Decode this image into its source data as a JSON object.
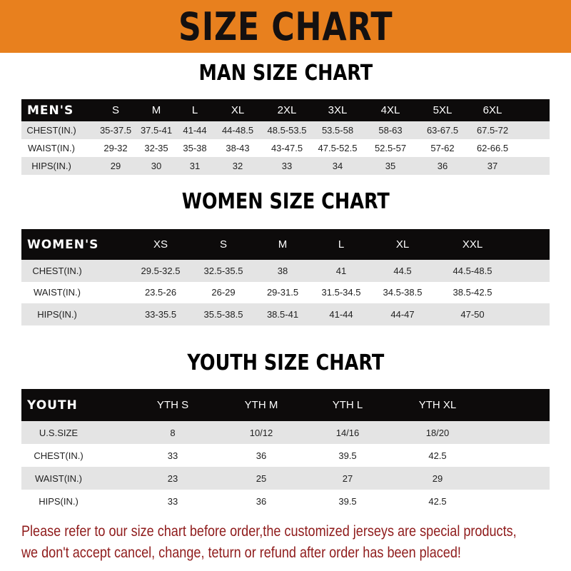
{
  "banner": {
    "title": "SIZE CHART",
    "color": "#e8801e"
  },
  "men": {
    "title": "MAN SIZE CHART",
    "header": [
      "MEN'S",
      "S",
      "M",
      "L",
      "XL",
      "2XL",
      "3XL",
      "4XL",
      "5XL",
      "6XL"
    ],
    "rows": [
      [
        "CHEST(IN.)",
        "35-37.5",
        "37.5-41",
        "41-44",
        "44-48.5",
        "48.5-53.5",
        "53.5-58",
        "58-63",
        "63-67.5",
        "67.5-72"
      ],
      [
        "WAIST(IN.)",
        "29-32",
        "32-35",
        "35-38",
        "38-43",
        "43-47.5",
        "47.5-52.5",
        "52.5-57",
        "57-62",
        "62-66.5"
      ],
      [
        "HIPS(IN.)",
        "29",
        "30",
        "31",
        "32",
        "33",
        "34",
        "35",
        "36",
        "37"
      ]
    ]
  },
  "women": {
    "title": "WOMEN SIZE CHART",
    "header": [
      "WOMEN'S",
      "XS",
      "S",
      "M",
      "L",
      "XL",
      "XXL"
    ],
    "rows": [
      [
        "CHEST(IN.)",
        "29.5-32.5",
        "32.5-35.5",
        "38",
        "41",
        "44.5",
        "44.5-48.5"
      ],
      [
        "WAIST(IN.)",
        "23.5-26",
        "26-29",
        "29-31.5",
        "31.5-34.5",
        "34.5-38.5",
        "38.5-42.5"
      ],
      [
        "HIPS(IN.)",
        "33-35.5",
        "35.5-38.5",
        "38.5-41",
        "41-44",
        "44-47",
        "47-50"
      ]
    ]
  },
  "youth": {
    "title": "YOUTH SIZE CHART",
    "header": [
      "YOUTH",
      "YTH S",
      "YTH M",
      "YTH L",
      "YTH XL"
    ],
    "rows": [
      [
        "U.S.SIZE",
        "8",
        "10/12",
        "14/16",
        "18/20"
      ],
      [
        "CHEST(IN.)",
        "33",
        "36",
        "39.5",
        "42.5"
      ],
      [
        "WAIST(IN.)",
        "23",
        "25",
        "27",
        "29"
      ],
      [
        "HIPS(IN.)",
        "33",
        "36",
        "39.5",
        "42.5"
      ]
    ]
  },
  "notice": {
    "line1": "Please refer to our size chart before order,the customized jerseys are special products,",
    "line2": "we don't accept cancel, change, teturn or refund after order has been placed!",
    "color": "#8f1b1b"
  }
}
